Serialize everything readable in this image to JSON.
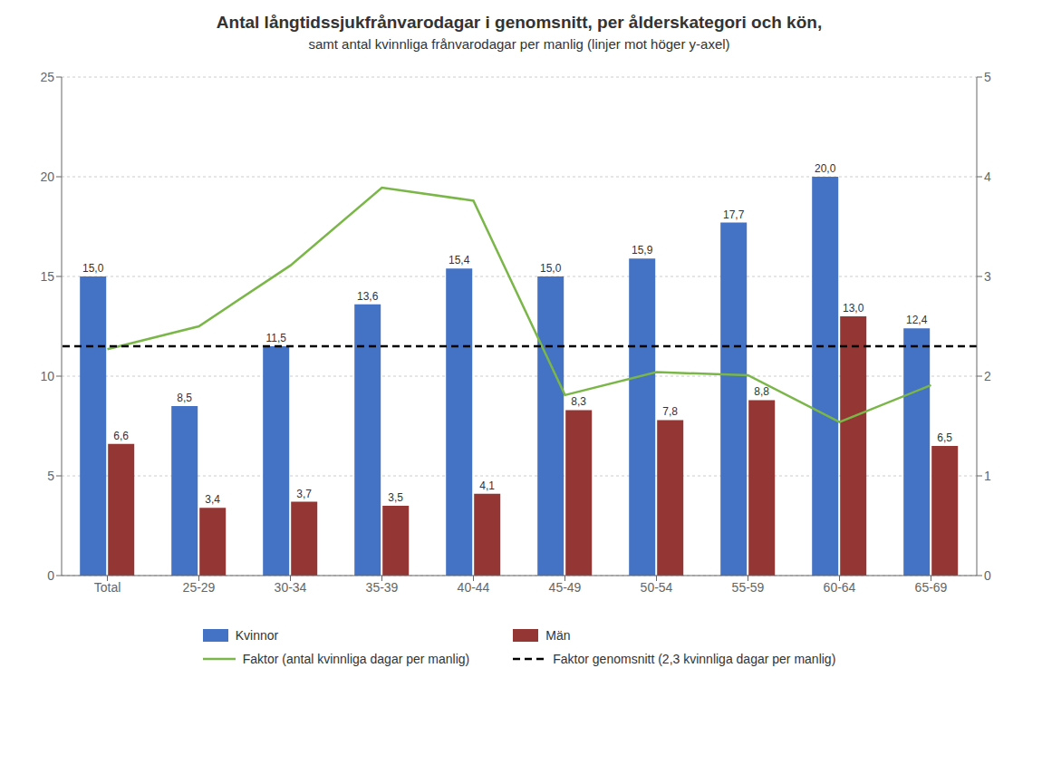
{
  "chart_data": {
    "type": "bar",
    "title": "Antal långtidssjukfrånvarodagar i genomsnitt, per ålderskategori och kön,",
    "subtitle": "samt antal kvinnliga frånvarodagar per manlig (linjer mot höger y-axel)",
    "categories": [
      "Total",
      "25-29",
      "30-34",
      "35-39",
      "40-44",
      "45-49",
      "50-54",
      "55-59",
      "60-64",
      "65-69"
    ],
    "series": [
      {
        "name": "Kvinnor",
        "color": "#4472C4",
        "values": [
          15.0,
          8.5,
          11.5,
          13.6,
          15.4,
          15.0,
          15.9,
          17.7,
          20.0,
          12.4
        ],
        "value_labels": [
          "15,0",
          "8,5",
          "11,5",
          "13,6",
          "15,4",
          "15,0",
          "15,9",
          "17,7",
          "20,0",
          "12,4"
        ]
      },
      {
        "name": "Män",
        "color": "#943634",
        "values": [
          6.6,
          3.4,
          3.7,
          3.5,
          4.1,
          8.3,
          7.8,
          8.8,
          13.0,
          6.5
        ],
        "value_labels": [
          "6,6",
          "3,4",
          "3,7",
          "3,5",
          "4,1",
          "8,3",
          "7,8",
          "8,8",
          "13,0",
          "6,5"
        ]
      },
      {
        "name": "Faktor (antal kvinnliga dagar per manlig)",
        "type": "line",
        "color": "#7AB648",
        "axis": "y2",
        "values": [
          2.27,
          2.5,
          3.11,
          3.89,
          3.76,
          1.81,
          2.04,
          2.01,
          1.54,
          1.91
        ]
      },
      {
        "name": "Faktor genomsnitt (2,3 kvinnliga dagar per manlig)",
        "type": "hline",
        "color": "#000000",
        "line_style": "dashed",
        "axis": "y2",
        "value": 2.3
      }
    ],
    "ylim": [
      0,
      25
    ],
    "yticks": [
      0,
      5,
      10,
      15,
      20,
      25
    ],
    "y2lim": [
      0,
      5
    ],
    "y2ticks": [
      0,
      1,
      2,
      3,
      4,
      5
    ],
    "grid": true,
    "legend": "bottom",
    "data_labels": true
  }
}
